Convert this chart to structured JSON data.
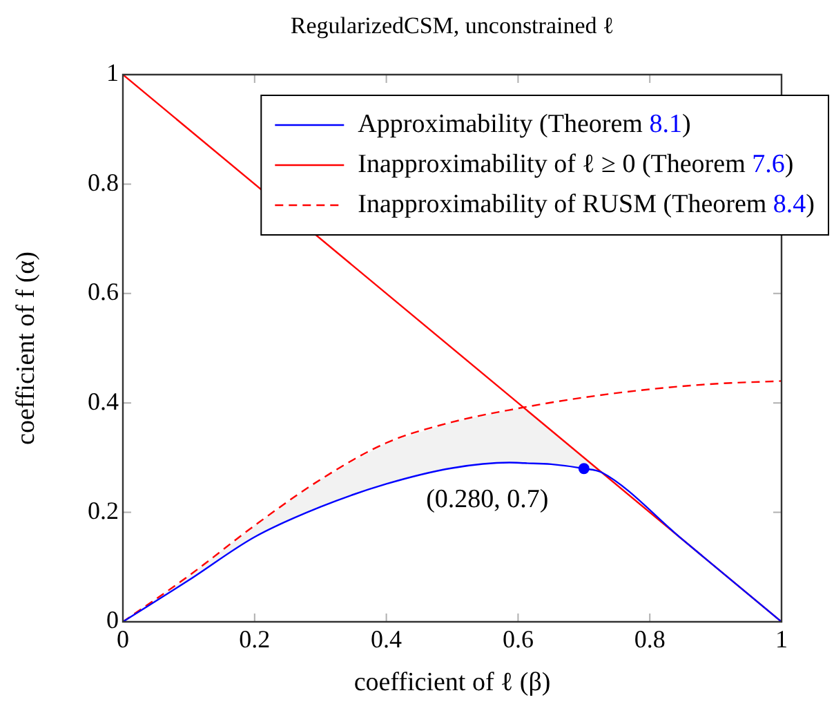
{
  "chart_data": {
    "type": "line",
    "title": "RegularizedCSM, unconstrained ℓ",
    "xlabel": "coefficient of ℓ (β)",
    "ylabel": "coefficient of f (α)",
    "xlim": [
      0,
      1
    ],
    "ylim": [
      0,
      1
    ],
    "xticks": [
      0,
      0.2,
      0.4,
      0.6,
      0.8,
      1
    ],
    "yticks": [
      0,
      0.2,
      0.4,
      0.6,
      0.8,
      1
    ],
    "grid": false,
    "legend": "top right",
    "series": [
      {
        "name": "Approximability (Theorem 8.1)",
        "color": "#0000ff",
        "line_style": "solid",
        "x": [
          0,
          0.1,
          0.2,
          0.3,
          0.4,
          0.5,
          0.587,
          0.61,
          0.65,
          0.7,
          0.727,
          0.85,
          1
        ],
        "values": [
          0,
          0.076,
          0.155,
          0.21,
          0.252,
          0.281,
          0.291,
          0.29,
          0.288,
          0.28,
          0.273,
          0.15,
          0
        ],
        "lower": [
          0,
          0.076,
          0.155,
          0.21,
          0.252,
          0.281,
          0.291,
          0.29,
          0.288,
          0.28,
          0.273,
          null,
          null
        ],
        "upper": [
          0,
          0.084,
          0.176,
          0.26,
          0.327,
          0.365,
          0.387,
          0.39,
          0.35,
          0.3,
          0.273,
          null,
          null
        ]
      },
      {
        "name": "Inapproximability of ℓ ≥ 0 (Theorem 7.6)",
        "color": "#ff0000",
        "line_style": "solid",
        "x": [
          0,
          1
        ],
        "values": [
          1,
          0
        ]
      },
      {
        "name": "Inapproximability of RUSM (Theorem 8.4)",
        "color": "#ff0000",
        "line_style": "dashed",
        "x": [
          0,
          0.1,
          0.2,
          0.3,
          0.4,
          0.5,
          0.6,
          0.7,
          0.8,
          0.9,
          1
        ],
        "values": [
          0,
          0.084,
          0.176,
          0.26,
          0.327,
          0.365,
          0.39,
          0.41,
          0.425,
          0.435,
          0.44
        ]
      },
      {
        "color": "#0000ff",
        "type": "scatter",
        "marker": "circle",
        "x": [
          0.7
        ],
        "values": [
          0.28
        ]
      }
    ],
    "annotations": [
      {
        "text": "(0.280, 0.7)",
        "x": 0.7,
        "y": 0.28
      }
    ]
  }
}
